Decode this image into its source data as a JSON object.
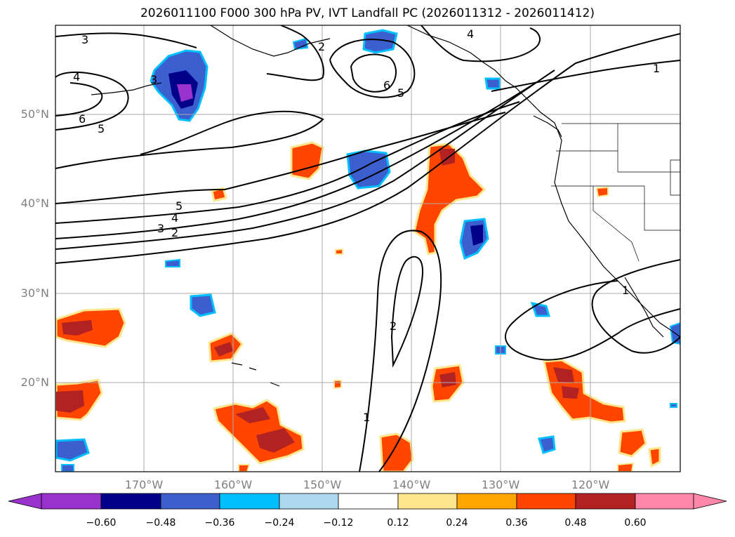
{
  "title": "2026011100 F000 300 hPa PV, IVT Landfall PC (2026011312 - 2026011412)",
  "lat_labels": [
    "50°N",
    "40°N",
    "30°N",
    "20°N"
  ],
  "lon_labels": [
    "170°W",
    "160°W",
    "150°W",
    "140°W",
    "130°W",
    "120°W"
  ],
  "colorbar": {
    "ticks": [
      "−0.60",
      "−0.48",
      "−0.36",
      "−0.24",
      "−0.12",
      "0.12",
      "0.24",
      "0.36",
      "0.48",
      "0.60"
    ],
    "colors": [
      "#9932cc",
      "#00008b",
      "#3b5fcf",
      "#00bfff",
      "#add8f0",
      "#ffffff",
      "#ffe68c",
      "#ffa500",
      "#ff4500",
      "#b22222",
      "#ff88aa"
    ]
  },
  "contour_labels": [
    "3",
    "4",
    "3",
    "6",
    "5",
    "2",
    "6",
    "5",
    "4",
    "1",
    "5",
    "4",
    "3",
    "2",
    "2",
    "1",
    "1"
  ]
}
